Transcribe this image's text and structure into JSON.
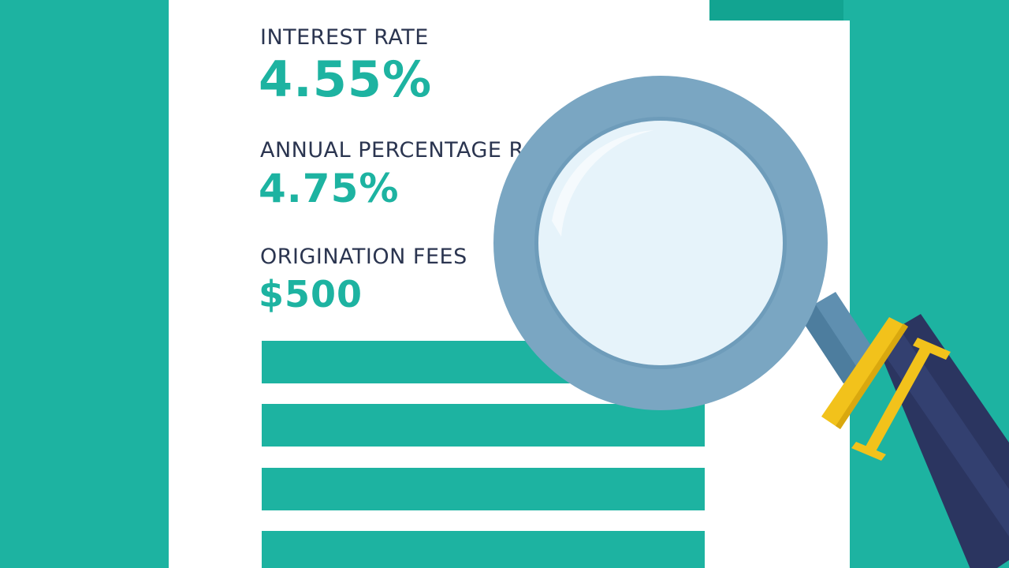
{
  "rates": {
    "interest_rate": {
      "label": "INTEREST RATE",
      "value": "4.55%"
    },
    "apr": {
      "label": "ANNUAL PERCENTAGE RATE (APR)",
      "value": "4.75%"
    },
    "origination_fees": {
      "label": "ORIGINATION FEES",
      "value": "$500"
    }
  },
  "colors": {
    "background": "#1db3a1",
    "accent": "#1db3a1",
    "label_text": "#2b3550",
    "lens_frame": "#7aa6c2",
    "handle": "#2b3560",
    "handle_ring": "#f2c21b"
  },
  "icons": {
    "magnifier": "magnifying-glass-icon"
  }
}
